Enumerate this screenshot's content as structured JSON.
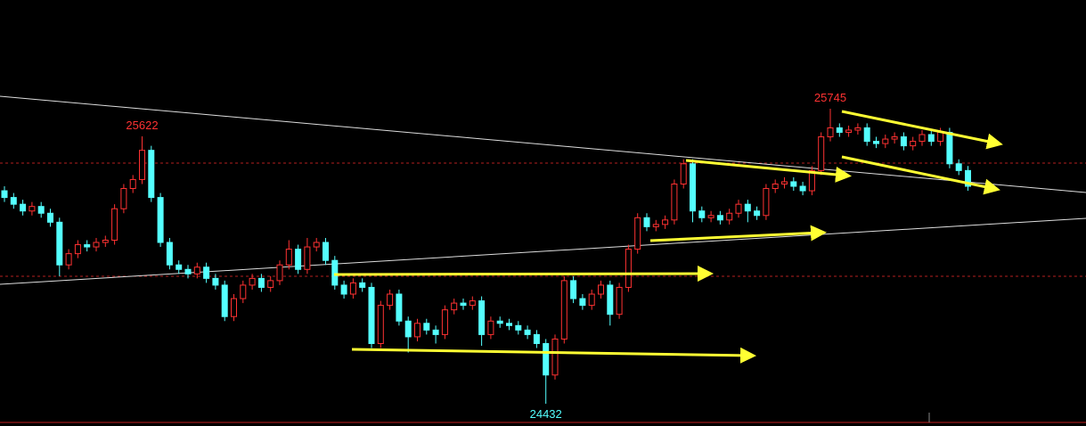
{
  "chart_data": {
    "type": "candlestick",
    "ylim": [
      24333,
      26229
    ],
    "up_color": "#ff3232",
    "down_color": "#54ffff",
    "open": [
      25380,
      25350,
      25320,
      25290,
      25310,
      25280,
      25240,
      25050,
      25100,
      25140,
      25130,
      25150,
      25160,
      25300,
      25390,
      25430,
      25560,
      25350,
      25150,
      25050,
      25030,
      25010,
      25040,
      24990,
      24960,
      24820,
      24900,
      24960,
      24990,
      24950,
      24980,
      25050,
      25120,
      25030,
      25130,
      25150,
      25070,
      24960,
      24920,
      24970,
      24950,
      24700,
      24870,
      24920,
      24800,
      24730,
      24790,
      24760,
      24740,
      24850,
      24880,
      24870,
      24890,
      24740,
      24800,
      24790,
      24780,
      24760,
      24740,
      24700,
      24560,
      24720,
      24980,
      24900,
      24870,
      24920,
      24960,
      24830,
      24950,
      25120,
      25260,
      25220,
      25230,
      25250,
      25410,
      25500,
      25290,
      25260,
      25270,
      25250,
      25280,
      25320,
      25290,
      25270,
      25390,
      25410,
      25420,
      25400,
      25380,
      25470,
      25620,
      25660,
      25640,
      25650,
      25660,
      25600,
      25590,
      25610,
      25620,
      25580,
      25600,
      25630,
      25600,
      25640,
      25500,
      25470
    ],
    "high": [
      25400,
      25370,
      25340,
      25330,
      25330,
      25300,
      25260,
      25120,
      25160,
      25160,
      25170,
      25180,
      25320,
      25410,
      25450,
      25622,
      25580,
      25370,
      25170,
      25070,
      25050,
      25060,
      25060,
      25010,
      24980,
      24920,
      24980,
      25010,
      25010,
      25000,
      25070,
      25160,
      25140,
      25170,
      25170,
      25170,
      25090,
      24980,
      24990,
      24990,
      24970,
      24890,
      24940,
      24940,
      24820,
      24810,
      24810,
      24780,
      24870,
      24900,
      24900,
      24910,
      24910,
      24820,
      24820,
      24810,
      24800,
      24780,
      24760,
      24720,
      24740,
      25000,
      25000,
      24920,
      24940,
      24980,
      24980,
      24970,
      25140,
      25280,
      25280,
      25250,
      25270,
      25430,
      25520,
      25520,
      25310,
      25290,
      25290,
      25300,
      25340,
      25340,
      25310,
      25410,
      25430,
      25440,
      25440,
      25420,
      25490,
      25640,
      25745,
      25680,
      25670,
      25680,
      25680,
      25620,
      25630,
      25640,
      25640,
      25620,
      25650,
      25650,
      25660,
      25660,
      25520,
      25490
    ],
    "low": [
      25330,
      25300,
      25270,
      25270,
      25260,
      25220,
      25000,
      25030,
      25080,
      25110,
      25110,
      25130,
      25140,
      25280,
      25370,
      25410,
      25330,
      25130,
      25030,
      25010,
      24990,
      24990,
      24970,
      24940,
      24800,
      24800,
      24880,
      24940,
      24930,
      24930,
      24960,
      25030,
      25010,
      25010,
      25110,
      25050,
      24940,
      24900,
      24900,
      24930,
      24680,
      24680,
      24850,
      24780,
      24660,
      24710,
      24740,
      24700,
      24720,
      24830,
      24850,
      24850,
      24690,
      24720,
      24770,
      24760,
      24740,
      24720,
      24680,
      24432,
      24540,
      24700,
      24880,
      24850,
      24850,
      24900,
      24780,
      24810,
      24930,
      25100,
      25200,
      25200,
      25210,
      25230,
      25390,
      25240,
      25240,
      25240,
      25230,
      25230,
      25260,
      25240,
      25250,
      25250,
      25370,
      25390,
      25380,
      25360,
      25360,
      25450,
      25600,
      25620,
      25620,
      25630,
      25580,
      25570,
      25570,
      25590,
      25560,
      25560,
      25580,
      25580,
      25580,
      25480,
      25450,
      25380
    ],
    "close": [
      25350,
      25320,
      25290,
      25310,
      25280,
      25240,
      25050,
      25100,
      25140,
      25130,
      25150,
      25160,
      25300,
      25390,
      25430,
      25560,
      25350,
      25150,
      25050,
      25030,
      25010,
      25040,
      24990,
      24960,
      24820,
      24900,
      24960,
      24990,
      24950,
      24980,
      25050,
      25120,
      25030,
      25130,
      25150,
      25070,
      24960,
      24920,
      24970,
      24950,
      24700,
      24870,
      24920,
      24800,
      24730,
      24790,
      24760,
      24740,
      24850,
      24880,
      24870,
      24890,
      24740,
      24800,
      24790,
      24780,
      24760,
      24740,
      24700,
      24560,
      24720,
      24980,
      24900,
      24870,
      24920,
      24960,
      24830,
      24950,
      25120,
      25260,
      25220,
      25230,
      25250,
      25410,
      25500,
      25290,
      25260,
      25270,
      25250,
      25280,
      25320,
      25290,
      25270,
      25390,
      25410,
      25420,
      25400,
      25380,
      25470,
      25620,
      25660,
      25640,
      25650,
      25660,
      25600,
      25590,
      25610,
      25620,
      25580,
      25600,
      25630,
      25600,
      25640,
      25500,
      25470,
      25400
    ],
    "annotations": [
      "25622",
      "25745",
      "24432"
    ]
  }
}
